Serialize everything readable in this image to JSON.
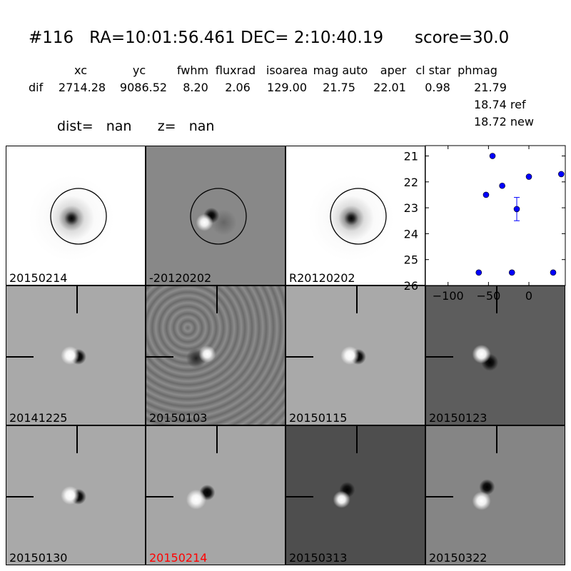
{
  "header": {
    "title": "#116   RA=10:01:56.461 DEC= 2:10:40.19      score=30.0",
    "columns": [
      "xc",
      "yc",
      "fwhm",
      "fluxrad",
      "isoarea",
      "mag auto",
      "aper",
      "cl star",
      "phmag"
    ],
    "row_label": "dif",
    "row_values": [
      "2714.28",
      "9086.52",
      "8.20",
      "2.06",
      "129.00",
      "21.75",
      "22.01",
      "0.98",
      "21.79"
    ],
    "phmag_ref": "18.74 ref",
    "phmag_new": "18.72 new",
    "dist_line": "dist=   nan      z=   nan"
  },
  "panels": [
    {
      "label": "20150214",
      "style": "ref",
      "circle": true,
      "marker": false,
      "label_color": "#000000"
    },
    {
      "label": "-20120202",
      "style": "diffcirc",
      "circle": true,
      "marker": false,
      "label_color": "#000000"
    },
    {
      "label": "R20120202",
      "style": "ref",
      "circle": true,
      "marker": false,
      "label_color": "#000000"
    },
    {
      "label": "20141225",
      "style": "light",
      "circle": false,
      "marker": true,
      "label_color": "#000000"
    },
    {
      "label": "20150103",
      "style": "noisy",
      "circle": false,
      "marker": true,
      "label_color": "#000000"
    },
    {
      "label": "20150115",
      "style": "light",
      "circle": false,
      "marker": true,
      "label_color": "#000000"
    },
    {
      "label": "20150123",
      "style": "dark",
      "circle": false,
      "marker": true,
      "label_color": "#000000"
    },
    {
      "label": "20150130",
      "style": "light",
      "circle": false,
      "marker": true,
      "label_color": "#000000"
    },
    {
      "label": "20150214",
      "style": "light2",
      "circle": false,
      "marker": true,
      "label_color": "#ff0000"
    },
    {
      "label": "20150313",
      "style": "dark2",
      "circle": false,
      "marker": true,
      "label_color": "#000000"
    },
    {
      "label": "20150322",
      "style": "mid",
      "circle": false,
      "marker": true,
      "label_color": "#000000"
    }
  ],
  "chart_data": {
    "type": "scatter",
    "title": "",
    "xlabel": "",
    "ylabel": "",
    "xlim": [
      -128,
      45
    ],
    "ylim": [
      26,
      20.6
    ],
    "y_inverted": true,
    "x_ticks": [
      -100,
      -50,
      0
    ],
    "y_ticks": [
      21,
      22,
      23,
      24,
      25,
      26
    ],
    "grid": false,
    "color": "#0000ff",
    "points": [
      {
        "x": -62,
        "y": 25.5,
        "err": 0
      },
      {
        "x": -53,
        "y": 22.5,
        "err": 0
      },
      {
        "x": -45,
        "y": 21.0,
        "err": 0
      },
      {
        "x": -33,
        "y": 22.15,
        "err": 0
      },
      {
        "x": -21,
        "y": 25.5,
        "err": 0
      },
      {
        "x": -15,
        "y": 23.05,
        "err": 0.45
      },
      {
        "x": 0,
        "y": 21.8,
        "err": 0
      },
      {
        "x": 30,
        "y": 25.5,
        "err": 0
      },
      {
        "x": 40,
        "y": 21.7,
        "err": 0
      }
    ]
  }
}
